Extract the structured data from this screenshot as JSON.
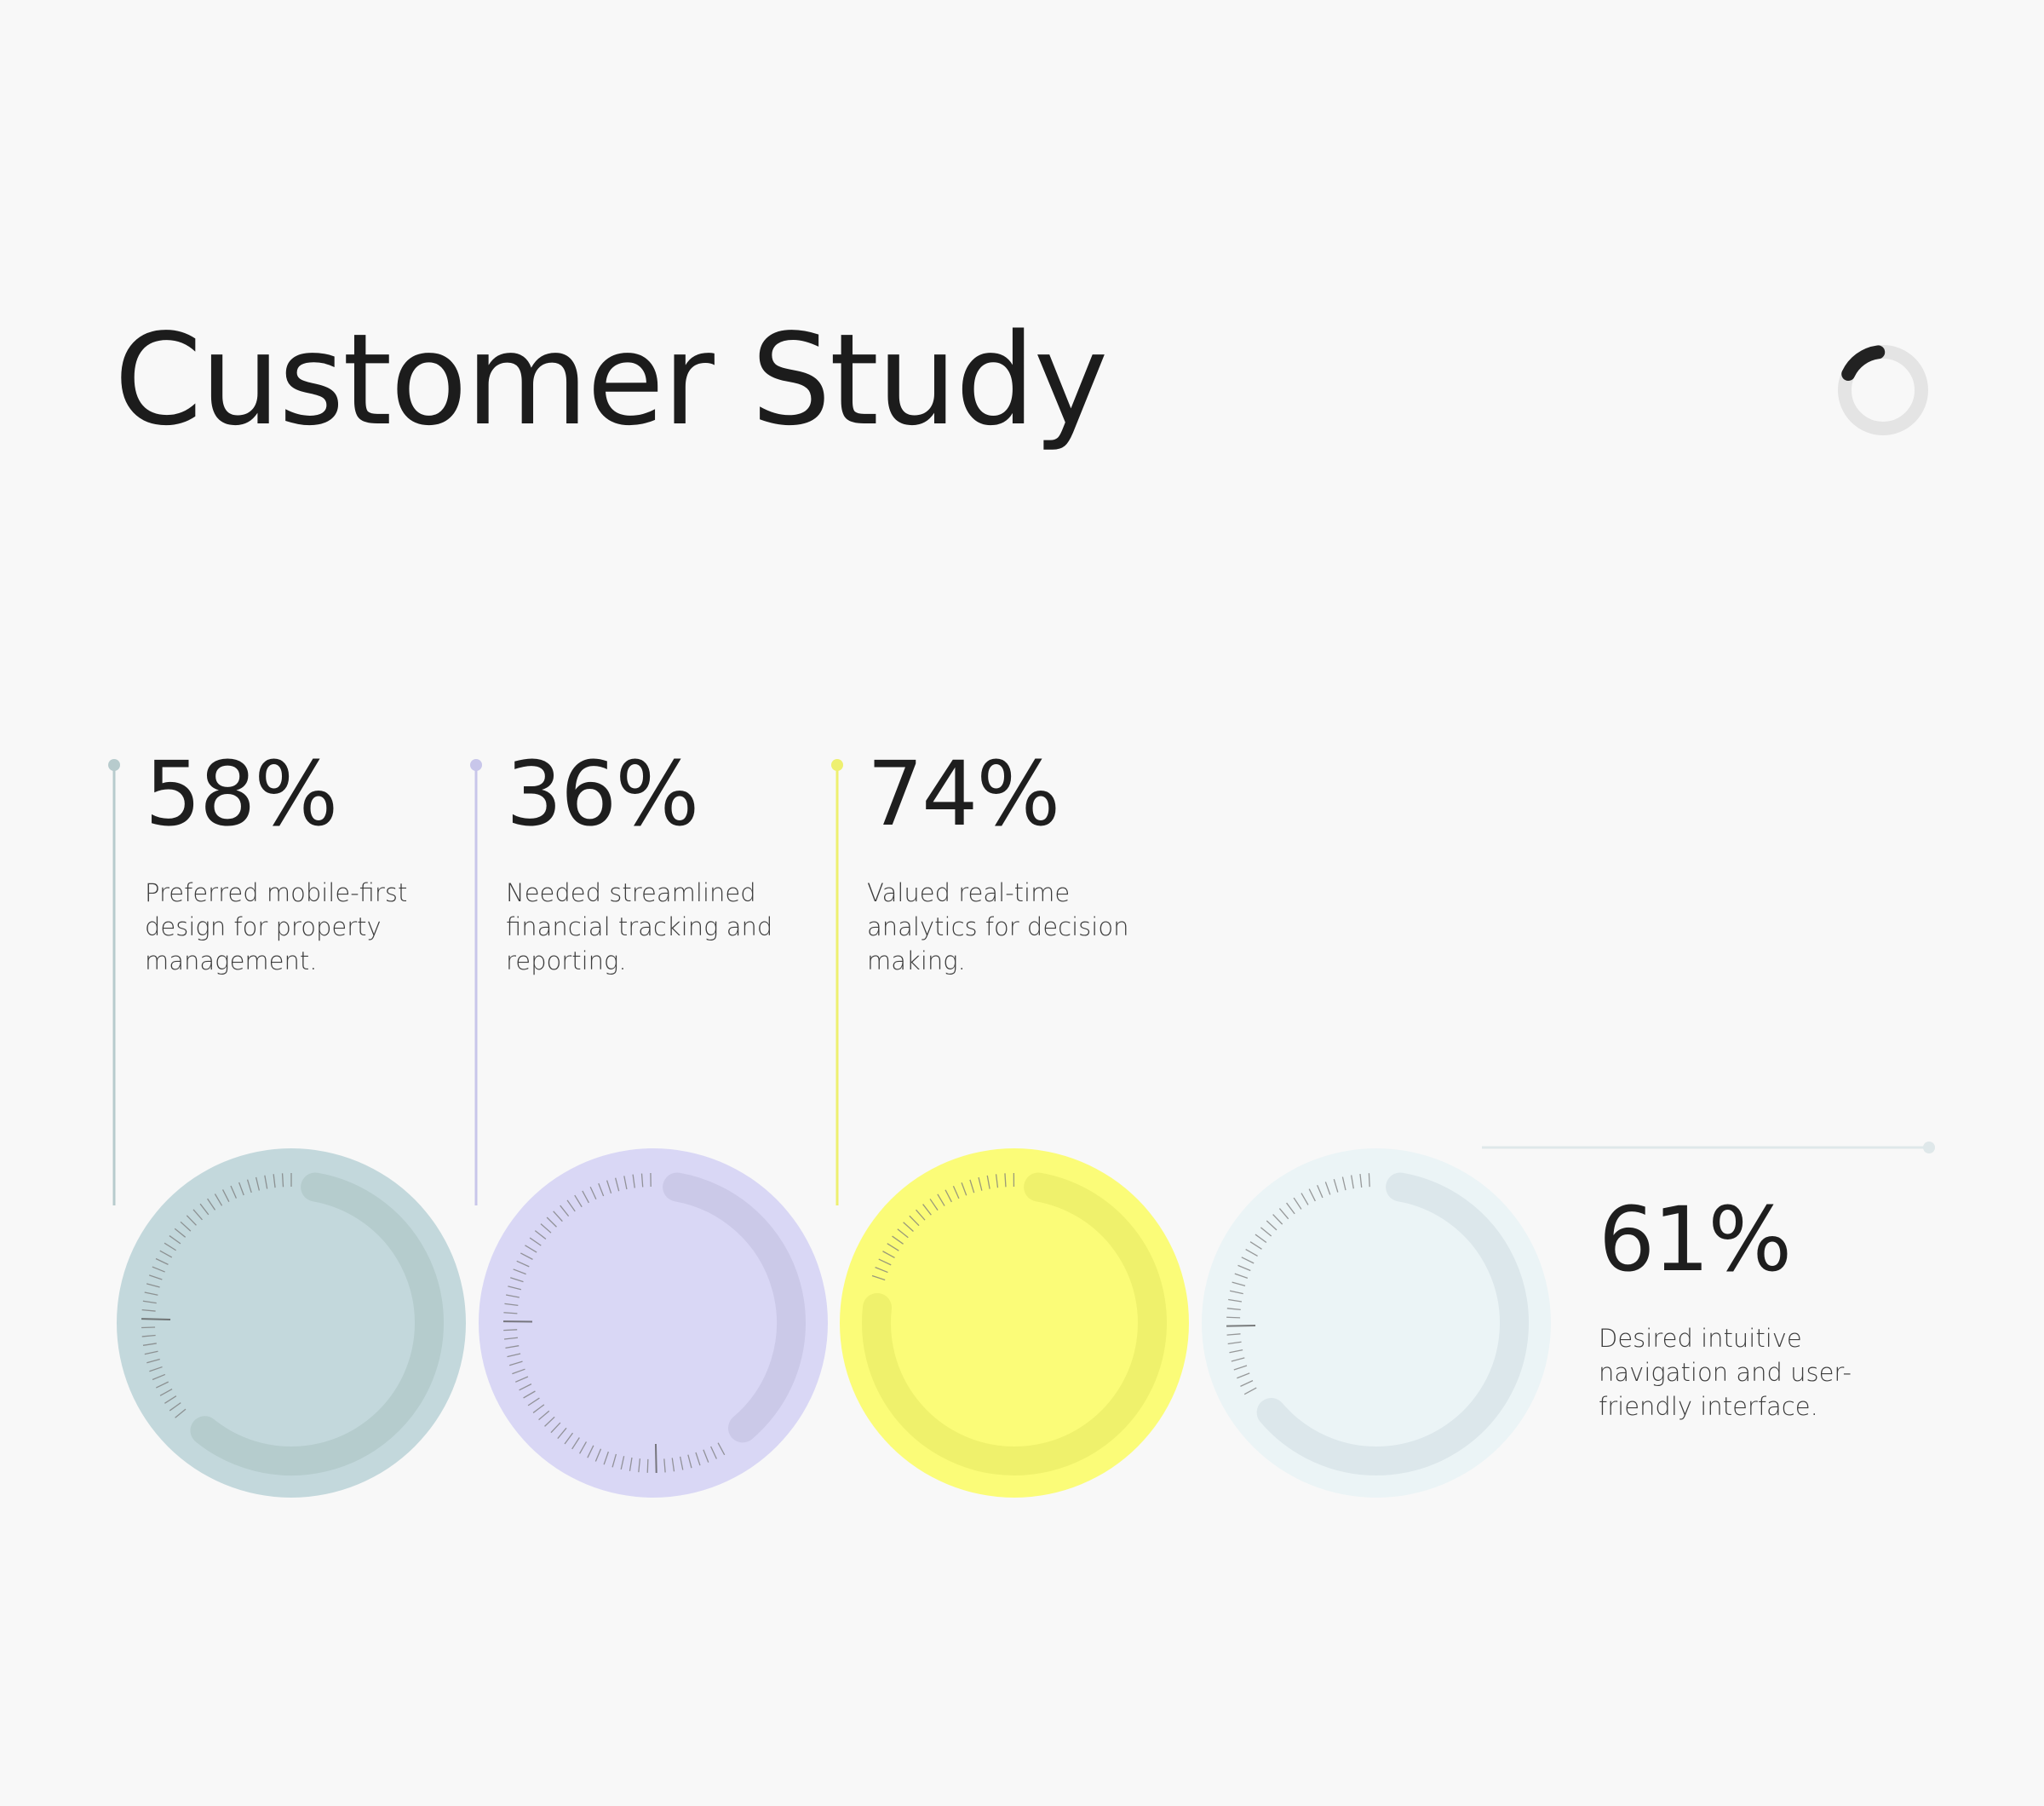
{
  "title": "Customer Study",
  "colors": {
    "background": "#f8f8f8",
    "text": "#1e1e1e",
    "spinner_track": "#e4e4e4",
    "spinner_arc": "#222222"
  },
  "spinner": {
    "progress": 0.16
  },
  "chart_data": {
    "type": "radial-gauge",
    "title": "Customer Study",
    "categories": [
      "Preferred mobile-first design for property management.",
      "Needed streamlined financial tracking and reporting.",
      "Valued real-time analytics for decision making.",
      "Desired intuitive navigation and user-friendly interface."
    ],
    "values": [
      58,
      36,
      74,
      61
    ],
    "unit": "%",
    "items": [
      {
        "value": 58,
        "label": "58%",
        "description": "Preferred mobile-first design for property management.",
        "fill": "#c3d8dc",
        "arc": "#b5cccd",
        "marker": "#b7cbcd"
      },
      {
        "value": 36,
        "label": "36%",
        "description": "Needed streamlined financial tracking and reporting.",
        "fill": "#d9d7f5",
        "arc": "#cbc9e8",
        "marker": "#c8c6ea"
      },
      {
        "value": 74,
        "label": "74%",
        "description": "Valued real-time analytics for decision making.",
        "fill": "#fbfc78",
        "arc": "#eff16c",
        "marker": "#eef070"
      },
      {
        "value": 61,
        "label": "61%",
        "description": "Desired intuitive navigation and user-friendly interface.",
        "fill": "#ebf4f6",
        "arc": "#dce7eb",
        "marker": "#dfe8ea"
      }
    ]
  }
}
